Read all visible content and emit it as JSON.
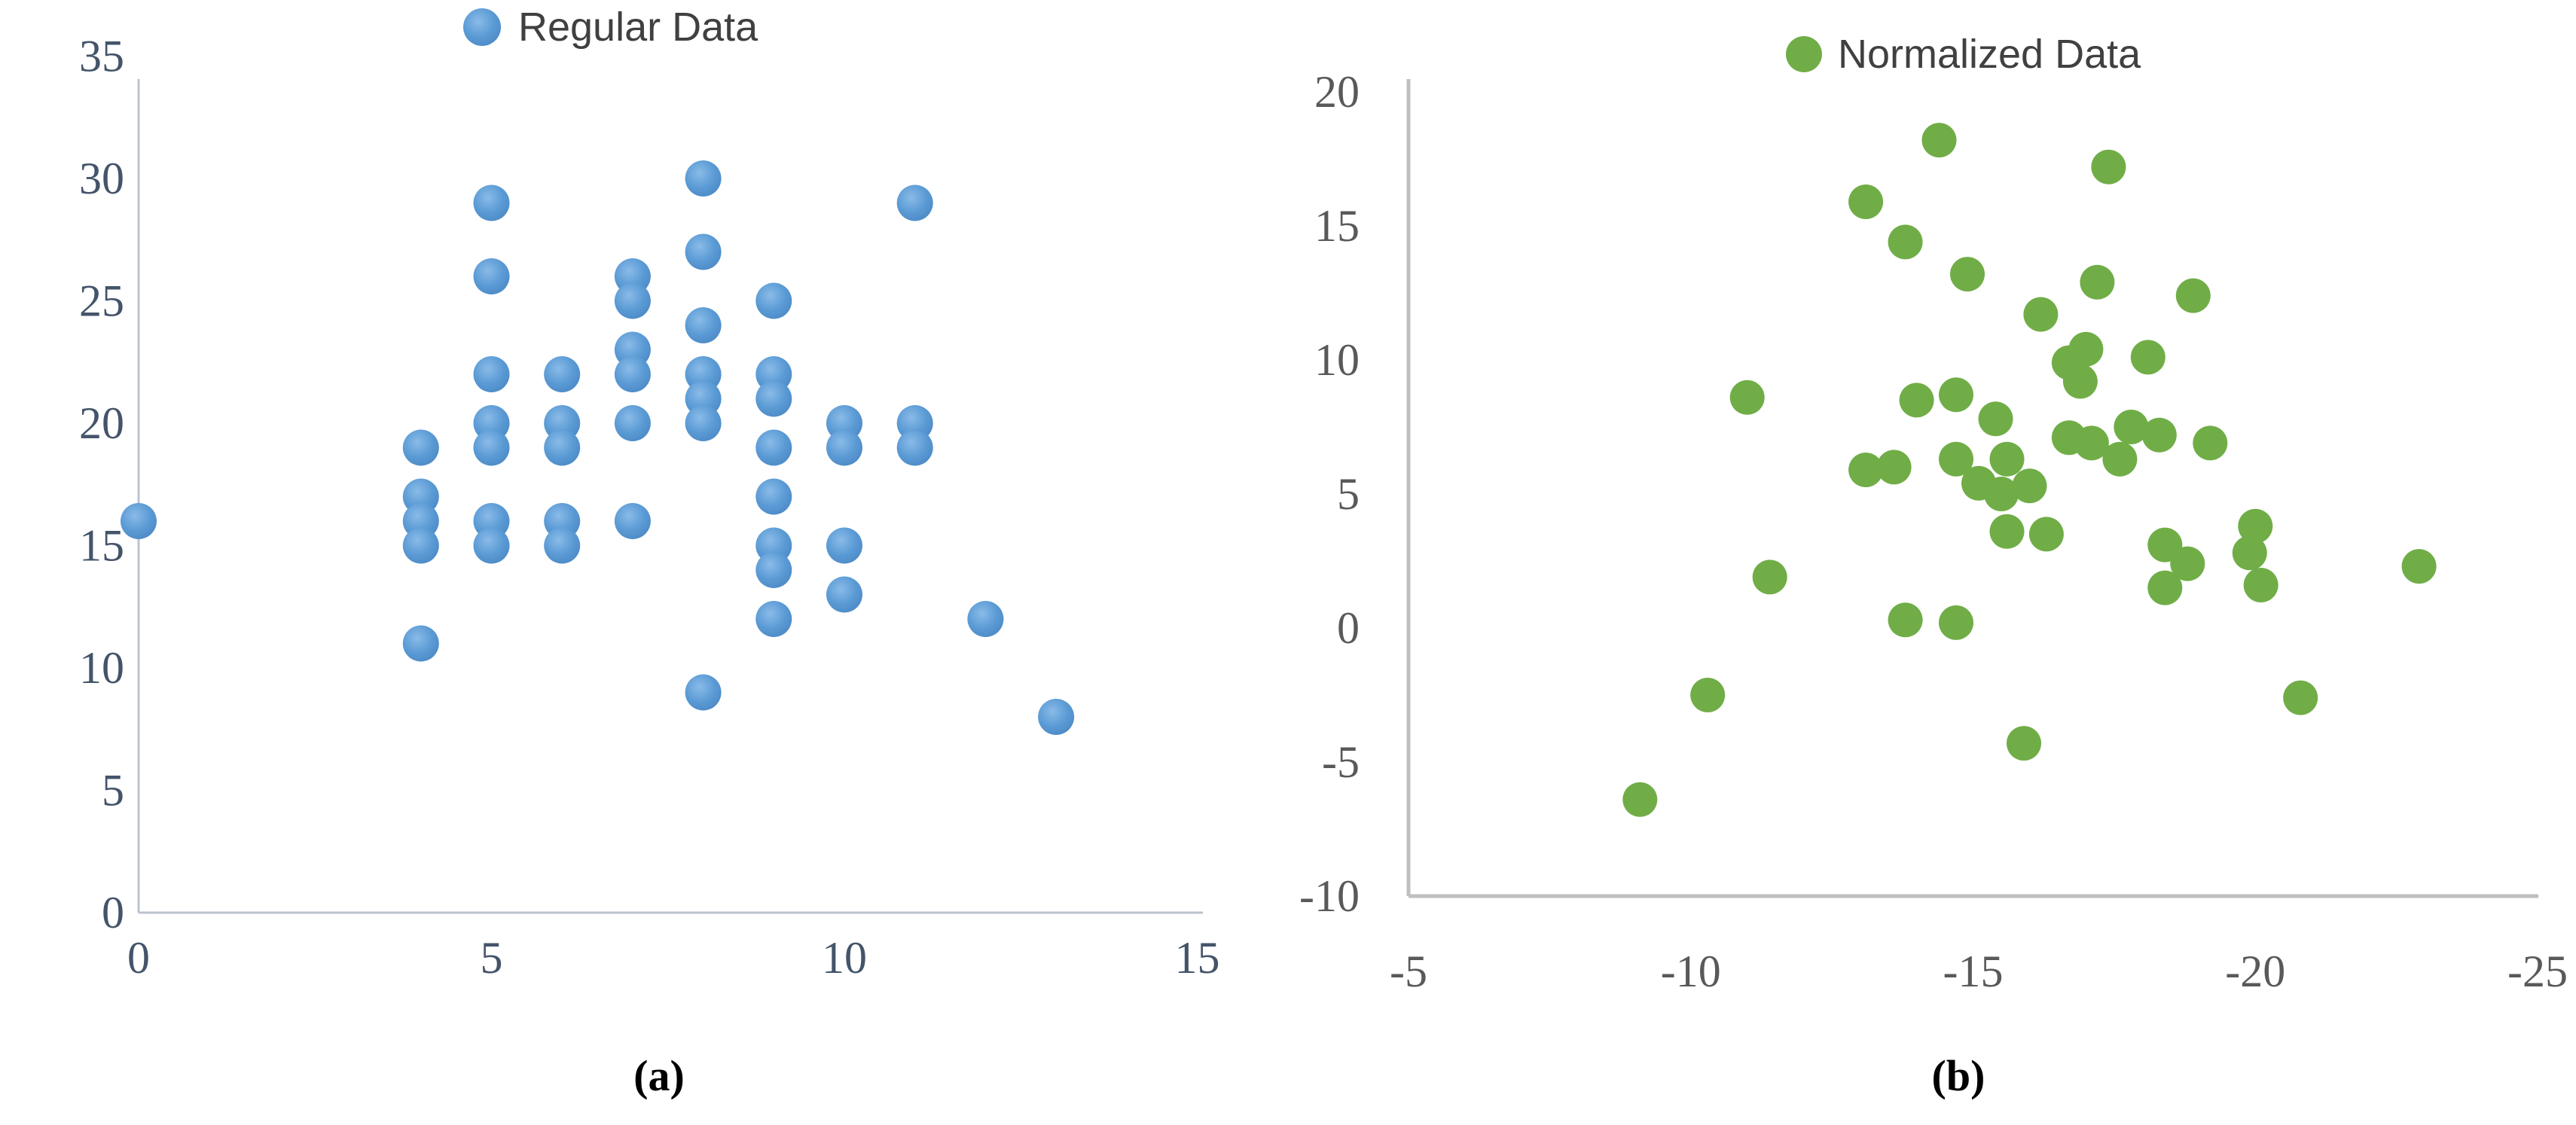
{
  "chart_data": [
    {
      "type": "scatter",
      "id": "a",
      "legend": "Regular Data",
      "caption": "(a)",
      "color": "#5B9BD5",
      "xlim": [
        0,
        15
      ],
      "ylim": [
        0,
        35
      ],
      "x_ticks": [
        0,
        5,
        10,
        15
      ],
      "y_ticks": [
        35,
        30,
        25,
        20,
        15,
        10,
        5,
        0
      ],
      "x_axis_reversed": false,
      "grid": false,
      "legend_position": "top-center",
      "points": [
        [
          0,
          16
        ],
        [
          4,
          19
        ],
        [
          4,
          17
        ],
        [
          4,
          16
        ],
        [
          4,
          15
        ],
        [
          4,
          11
        ],
        [
          5,
          29
        ],
        [
          5,
          26
        ],
        [
          5,
          22
        ],
        [
          5,
          20
        ],
        [
          5,
          19
        ],
        [
          5,
          16
        ],
        [
          5,
          15
        ],
        [
          6,
          22
        ],
        [
          6,
          20
        ],
        [
          6,
          19
        ],
        [
          6,
          16
        ],
        [
          6,
          15
        ],
        [
          7,
          26
        ],
        [
          7,
          25
        ],
        [
          7,
          23
        ],
        [
          7,
          22
        ],
        [
          7,
          20
        ],
        [
          7,
          16
        ],
        [
          8,
          30
        ],
        [
          8,
          27
        ],
        [
          8,
          24
        ],
        [
          8,
          22
        ],
        [
          8,
          21
        ],
        [
          8,
          20
        ],
        [
          8,
          9
        ],
        [
          9,
          25
        ],
        [
          9,
          22
        ],
        [
          9,
          21
        ],
        [
          9,
          19
        ],
        [
          9,
          17
        ],
        [
          9,
          15
        ],
        [
          9,
          14
        ],
        [
          9,
          12
        ],
        [
          10,
          20
        ],
        [
          10,
          19
        ],
        [
          10,
          15
        ],
        [
          10,
          13
        ],
        [
          11,
          29
        ],
        [
          11,
          20
        ],
        [
          11,
          19
        ],
        [
          12,
          12
        ],
        [
          13,
          8
        ]
      ]
    },
    {
      "type": "scatter",
      "id": "b",
      "legend": "Normalized Data",
      "caption": "(b)",
      "color": "#70AD47",
      "xlim": [
        -5,
        -25
      ],
      "ylim": [
        -10,
        20
      ],
      "x_ticks": [
        -5,
        -10,
        -15,
        -20,
        -25
      ],
      "y_ticks": [
        20,
        15,
        10,
        5,
        0,
        -5,
        -10
      ],
      "x_axis_reversed": true,
      "grid": false,
      "legend_position": "top-center",
      "points": [
        [
          -14.4,
          18.2
        ],
        [
          -17.4,
          17.2
        ],
        [
          -13.1,
          15.9
        ],
        [
          -13.8,
          14.4
        ],
        [
          -14.9,
          13.2
        ],
        [
          -17.2,
          12.9
        ],
        [
          -18.9,
          12.4
        ],
        [
          -16.2,
          11.7
        ],
        [
          -17.0,
          10.4
        ],
        [
          -18.1,
          10.1
        ],
        [
          -16.7,
          9.9
        ],
        [
          -16.9,
          9.2
        ],
        [
          -11.0,
          8.6
        ],
        [
          -14.7,
          8.7
        ],
        [
          -14.0,
          8.5
        ],
        [
          -15.4,
          7.8
        ],
        [
          -17.8,
          7.5
        ],
        [
          -18.3,
          7.2
        ],
        [
          -16.7,
          7.1
        ],
        [
          -17.1,
          6.9
        ],
        [
          -19.2,
          6.9
        ],
        [
          -17.6,
          6.3
        ],
        [
          -14.7,
          6.3
        ],
        [
          -15.6,
          6.3
        ],
        [
          -13.1,
          5.9
        ],
        [
          -13.6,
          6.0
        ],
        [
          -15.1,
          5.4
        ],
        [
          -16.0,
          5.3
        ],
        [
          -15.5,
          5.0
        ],
        [
          -20.0,
          3.8
        ],
        [
          -19.9,
          2.8
        ],
        [
          -15.6,
          3.6
        ],
        [
          -16.3,
          3.5
        ],
        [
          -18.4,
          3.1
        ],
        [
          -18.8,
          2.4
        ],
        [
          -18.4,
          1.5
        ],
        [
          -20.1,
          1.6
        ],
        [
          -22.9,
          2.3
        ],
        [
          -11.4,
          1.9
        ],
        [
          -13.8,
          0.3
        ],
        [
          -14.7,
          0.2
        ],
        [
          -20.8,
          -2.6
        ],
        [
          -10.3,
          -2.5
        ],
        [
          -15.9,
          -4.3
        ],
        [
          -9.1,
          -6.4
        ]
      ]
    }
  ]
}
